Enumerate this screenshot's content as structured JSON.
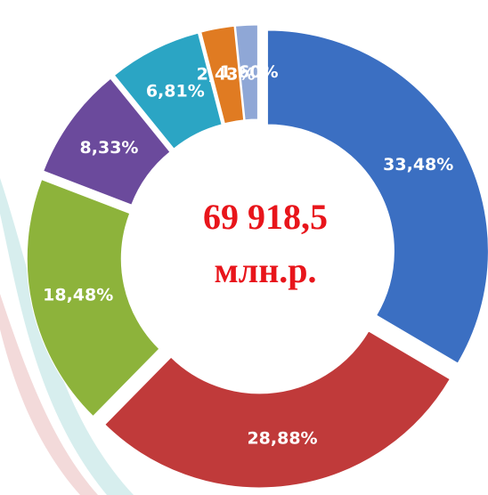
{
  "chart_data": {
    "type": "donut",
    "center_text": [
      "69 918,5",
      "млн.р."
    ],
    "values": [
      33.48,
      28.88,
      18.48,
      8.33,
      6.81,
      2.43,
      1.6
    ],
    "value_labels": [
      "33,48%",
      "28,88%",
      "18,48%",
      "8,33%",
      "6,81%",
      "2,43%",
      "1,60%"
    ],
    "colors": [
      "#3b6fc2",
      "#c03a3a",
      "#8db33b",
      "#6b4a9c",
      "#2ba5c4",
      "#e07b22",
      "#8fa7d6"
    ]
  }
}
